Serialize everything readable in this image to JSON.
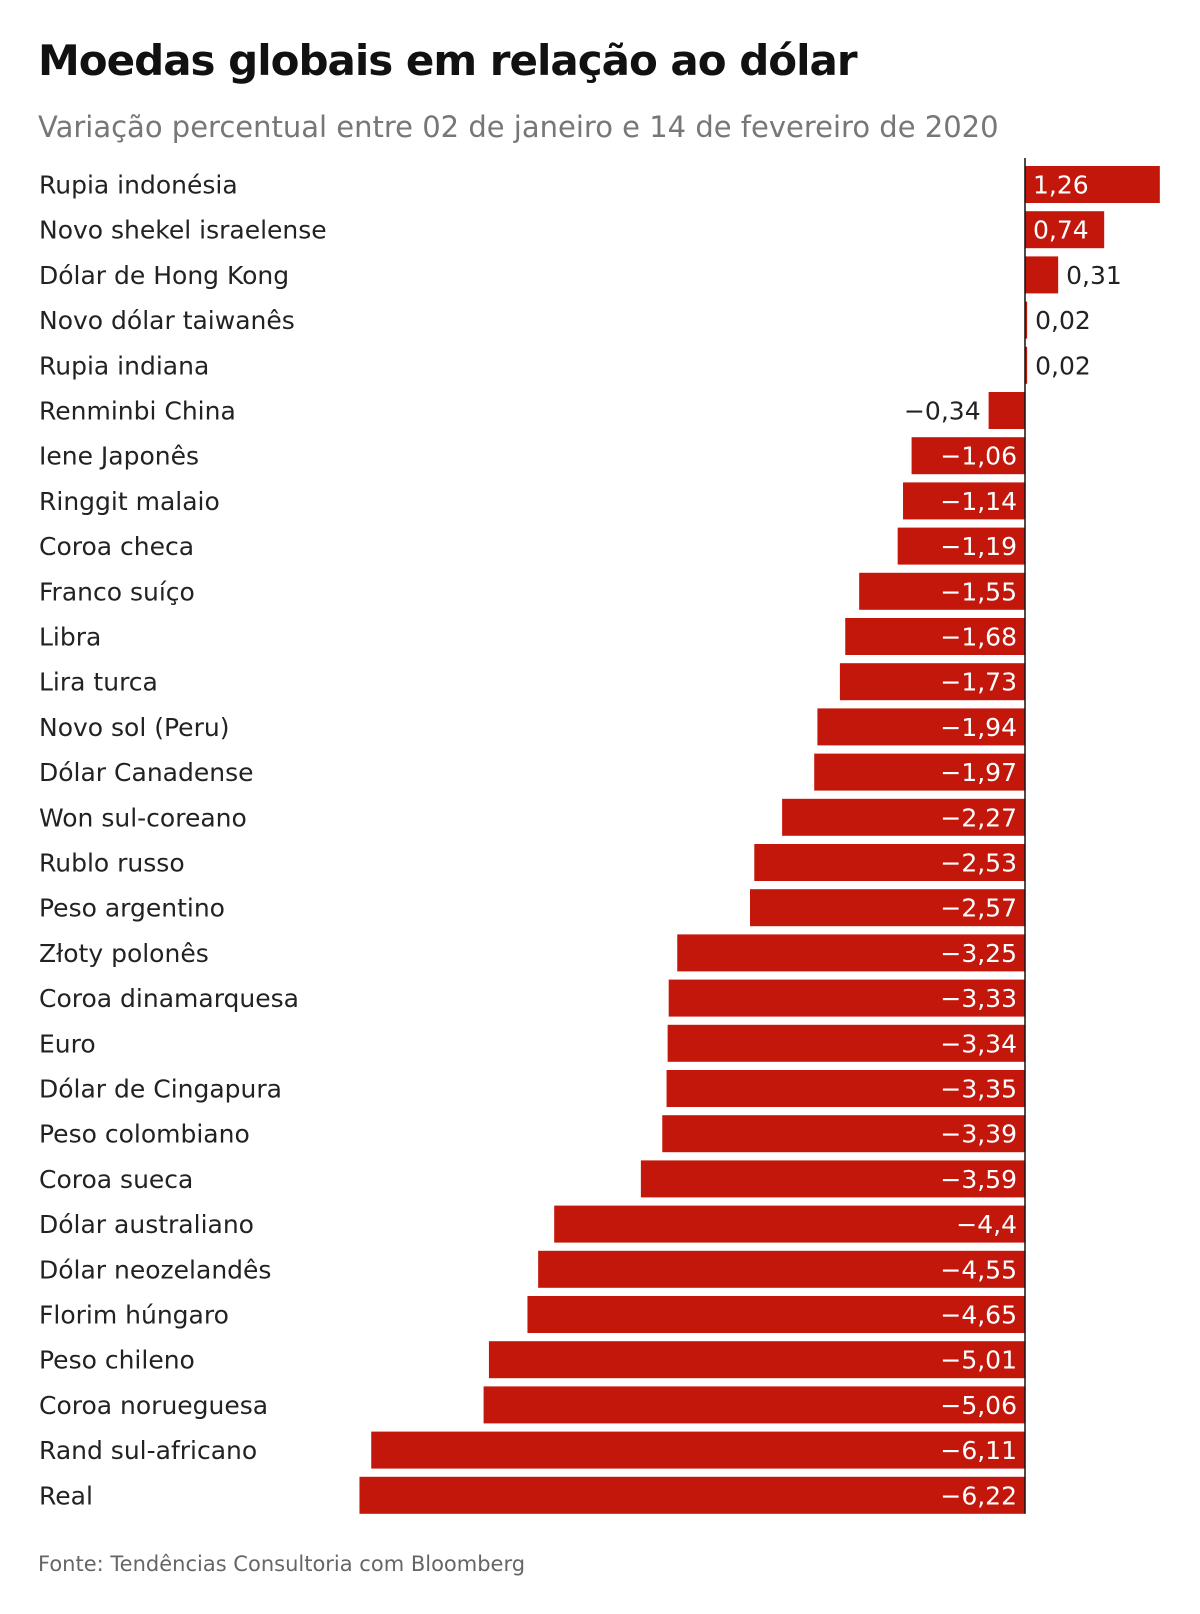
{
  "title": "Moedas globais em relação ao dólar",
  "subtitle": "Variação percentual entre 02 de janeiro e 14 de fevereiro de 2020",
  "source": "Fonte: Tendências Consultoria com Bloomberg",
  "colors": {
    "bar": "#c4170c",
    "label_inside": "#ffffff",
    "label_outside": "#222222",
    "axis": "#111111"
  },
  "chart_data": {
    "type": "bar",
    "orientation": "horizontal",
    "title": "Moedas globais em relação ao dólar",
    "subtitle": "Variação percentual entre 02 de janeiro e 14 de fevereiro de 2020",
    "xlabel": "",
    "ylabel": "",
    "grid": false,
    "categories": [
      "Rupia indonésia",
      "Novo shekel israelense",
      "Dólar de Hong Kong",
      "Novo dólar taiwanês",
      "Rupia indiana",
      "Renminbi China",
      "Iene Japonês",
      "Ringgit malaio",
      "Coroa checa",
      "Franco suíço",
      "Libra",
      "Lira turca",
      "Novo sol (Peru)",
      "Dólar Canadense",
      "Won sul-coreano",
      "Rublo russo",
      "Peso argentino",
      "Złoty polonês",
      "Coroa dinamarquesa",
      "Euro",
      "Dólar de Cingapura",
      "Peso colombiano",
      "Coroa sueca",
      "Dólar australiano",
      "Dólar neozelandês",
      "Florim húngaro",
      "Peso chileno",
      "Coroa norueguesa",
      "Rand sul-africano",
      "Real"
    ],
    "values": [
      1.26,
      0.74,
      0.31,
      0.02,
      0.02,
      -0.34,
      -1.06,
      -1.14,
      -1.19,
      -1.55,
      -1.68,
      -1.73,
      -1.94,
      -1.97,
      -2.27,
      -2.53,
      -2.57,
      -3.25,
      -3.33,
      -3.34,
      -3.35,
      -3.39,
      -3.59,
      -4.4,
      -4.55,
      -4.65,
      -5.01,
      -5.06,
      -6.11,
      -6.22
    ],
    "value_labels": [
      "1,26",
      "0,74",
      "0,31",
      "0,02",
      "0,02",
      "−0,34",
      "−1,06",
      "−1,14",
      "−1,19",
      "−1,55",
      "−1,68",
      "−1,73",
      "−1,94",
      "−1,97",
      "−2,27",
      "−2,53",
      "−2,57",
      "−3,25",
      "−3,33",
      "−3,34",
      "−3,35",
      "−3,39",
      "−3,59",
      "−4,4",
      "−4,55",
      "−4,65",
      "−5,01",
      "−5,06",
      "−6,11",
      "−6,22"
    ],
    "xlim": [
      -6.22,
      1.26
    ]
  }
}
